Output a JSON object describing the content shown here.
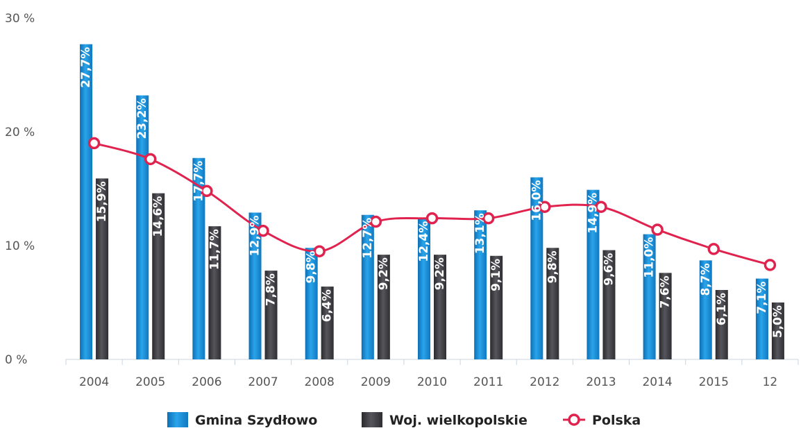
{
  "chart_data": {
    "type": "bar",
    "categories": [
      "2004",
      "2005",
      "2006",
      "2007",
      "2008",
      "2009",
      "2010",
      "2011",
      "2012",
      "2013",
      "2014",
      "2015",
      "12"
    ],
    "y_ticks": [
      "0 %",
      "10 %",
      "20 %",
      "30 %"
    ],
    "ylim": [
      0,
      30
    ],
    "grid": false,
    "legend_position": "bottom",
    "series": [
      {
        "name": "Gmina Szydłowo",
        "type": "bar",
        "color": "#1a8fd6",
        "values": [
          27.7,
          23.2,
          17.7,
          12.9,
          9.8,
          12.7,
          12.4,
          13.1,
          16.0,
          14.9,
          11.0,
          8.7,
          7.1
        ],
        "labels": [
          "27,7%",
          "23,2%",
          "17,7%",
          "12,9%",
          "9,8%",
          "12,7%",
          "12,4%",
          "13,1%",
          "16,0%",
          "14,9%",
          "11,0%",
          "8,7%",
          "7,1%"
        ]
      },
      {
        "name": "Woj. wielkopolskie",
        "type": "bar",
        "color": "#3d3d42",
        "values": [
          15.9,
          14.6,
          11.7,
          7.8,
          6.4,
          9.2,
          9.2,
          9.1,
          9.8,
          9.6,
          7.6,
          6.1,
          5.0
        ],
        "labels": [
          "15,9%",
          "14,6%",
          "11,7%",
          "7,8%",
          "6,4%",
          "9,2%",
          "9,2%",
          "9,1%",
          "9,8%",
          "9,6%",
          "7,6%",
          "6,1%",
          "5,0%"
        ]
      },
      {
        "name": "Polska",
        "type": "line",
        "color": "#e0234e",
        "values": [
          19.0,
          17.6,
          14.8,
          11.3,
          9.5,
          12.1,
          12.4,
          12.4,
          13.4,
          13.4,
          11.4,
          9.7,
          8.3
        ]
      }
    ]
  }
}
